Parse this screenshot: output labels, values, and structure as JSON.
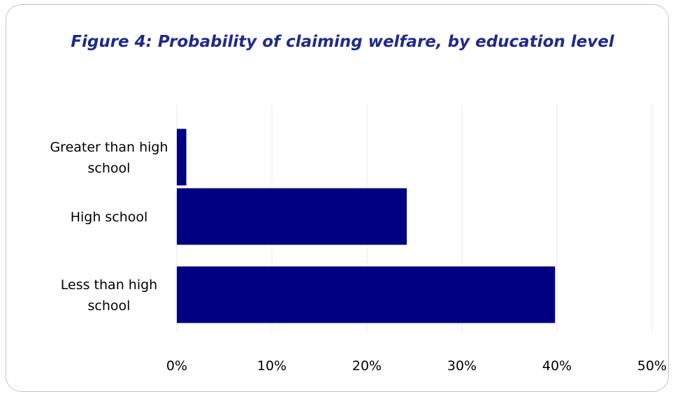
{
  "chart_data": {
    "type": "bar",
    "orientation": "horizontal",
    "title": "Figure 4: Probability of claiming welfare, by education level",
    "categories": [
      [
        "Greater than high",
        "school"
      ],
      [
        "High school"
      ],
      [
        "Less than high",
        "school"
      ]
    ],
    "values": [
      1,
      24.2,
      39.8
    ],
    "xlim": [
      0,
      50
    ],
    "x_ticks": [
      0,
      10,
      20,
      30,
      40,
      50
    ],
    "x_tick_labels": [
      "0%",
      "10%",
      "20%",
      "30%",
      "40%",
      "50%"
    ],
    "grid": true,
    "legend": "none",
    "bar_color": "#000080",
    "grid_color": "#e8e8e8",
    "title_color": "#1f2a8c",
    "frame_color": "#c9c4b4"
  }
}
